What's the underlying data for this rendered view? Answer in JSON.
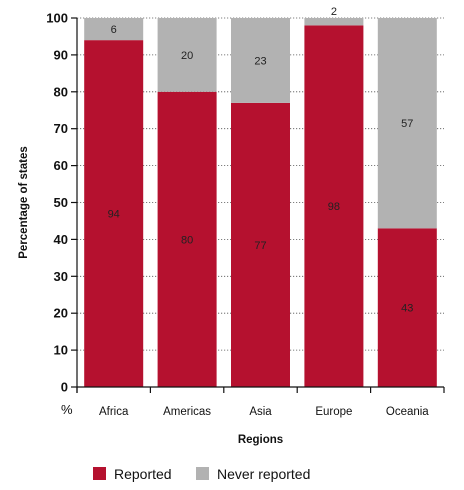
{
  "chart_data": {
    "type": "bar",
    "stacked": true,
    "categories": [
      "Africa",
      "Americas",
      "Asia",
      "Europe",
      "Oceania"
    ],
    "series": [
      {
        "name": "Reported",
        "values": [
          94,
          80,
          77,
          98,
          43
        ],
        "color": "#b5112f",
        "label_color": "#222222"
      },
      {
        "name": "Never reported",
        "values": [
          6,
          20,
          23,
          2,
          57
        ],
        "color": "#b2b2b2",
        "label_color": "#222222"
      }
    ],
    "xlabel": "Regions",
    "ylabel": "Percentage of states",
    "y_unit_label": "%",
    "ylim": [
      0,
      100
    ],
    "yticks": [
      0,
      10,
      20,
      30,
      40,
      50,
      60,
      70,
      80,
      90,
      100
    ],
    "grid": "horizontal dotted",
    "legend_position": "bottom-left"
  }
}
